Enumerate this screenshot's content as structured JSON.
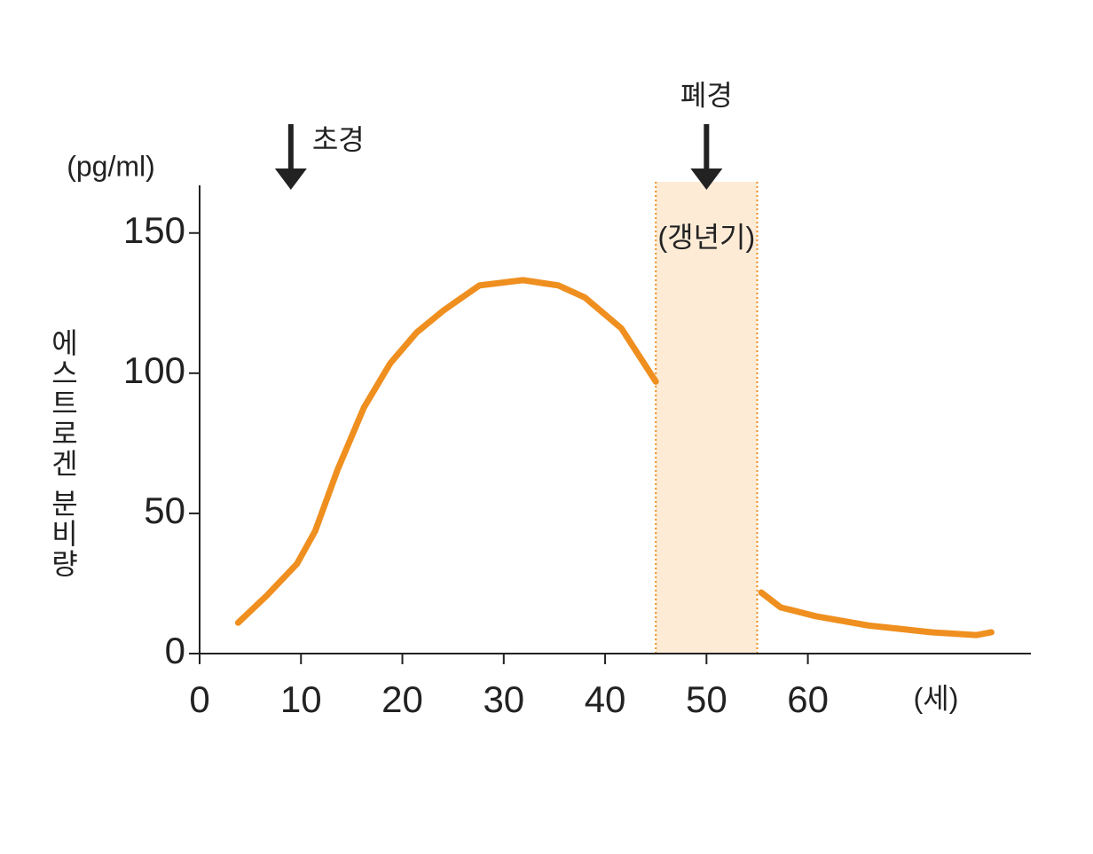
{
  "chart_data": {
    "type": "line",
    "y_unit": "(pg/ml)",
    "y_label": "에스트로겐 분비량",
    "x_unit": "(세)",
    "x": [
      3.8,
      6.6,
      9.6,
      11.4,
      13.6,
      16.2,
      18.8,
      21.4,
      24.1,
      27.6,
      31.9,
      35.4,
      38,
      41.6,
      45,
      50,
      55.4,
      57.3,
      60.8,
      66,
      72.2,
      76.6,
      78.1
    ],
    "series": [
      {
        "name": "에스트로겐",
        "color": "#ef8f1f",
        "values": [
          11,
          20.6,
          32,
          43.7,
          65.5,
          87.7,
          103.5,
          114.5,
          122.5,
          131.3,
          133.2,
          131.3,
          127,
          116,
          97,
          null,
          21.8,
          16.5,
          13.3,
          10,
          7.6,
          6.6,
          7.6
        ]
      }
    ],
    "xlim": [
      0,
      82
    ],
    "ylim": [
      0,
      167
    ],
    "xticks": [
      0,
      10,
      20,
      30,
      40,
      50,
      60
    ],
    "yticks": [
      0,
      50,
      100,
      150
    ],
    "shaded_region": {
      "label": "(갱년기)",
      "x": [
        45,
        55
      ],
      "color": "#fde6cc"
    },
    "annotations": [
      {
        "label": "초경",
        "x": 9
      },
      {
        "label": "폐경",
        "x": 50
      }
    ]
  }
}
